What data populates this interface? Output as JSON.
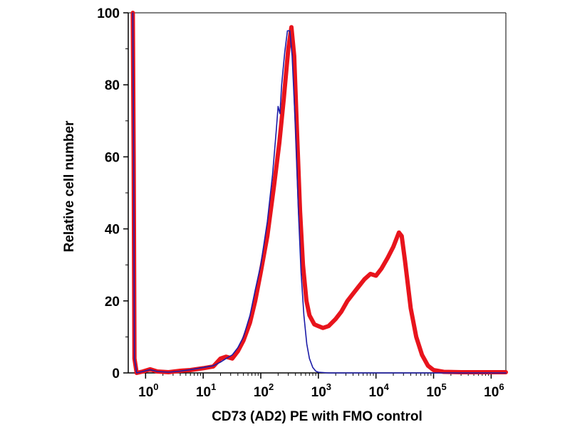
{
  "chart_data": {
    "type": "line",
    "title": "",
    "xlabel": "CD73 (AD2) PE with FMO control",
    "ylabel": "Relative cell number",
    "x_scale": "log",
    "xlim": [
      0.5,
      1800000
    ],
    "ylim": [
      0,
      100
    ],
    "x_ticks": [
      {
        "base": "10",
        "exp": "0",
        "value": 1
      },
      {
        "base": "10",
        "exp": "1",
        "value": 10
      },
      {
        "base": "10",
        "exp": "2",
        "value": 100
      },
      {
        "base": "10",
        "exp": "3",
        "value": 1000
      },
      {
        "base": "10",
        "exp": "4",
        "value": 10000
      },
      {
        "base": "10",
        "exp": "5",
        "value": 100000
      },
      {
        "base": "10",
        "exp": "6",
        "value": 1000000
      }
    ],
    "y_ticks": [
      {
        "label": "0",
        "value": 0
      },
      {
        "label": "20",
        "value": 20
      },
      {
        "label": "40",
        "value": 40
      },
      {
        "label": "60",
        "value": 60
      },
      {
        "label": "80",
        "value": 80
      },
      {
        "label": "100",
        "value": 100
      }
    ],
    "grid": false,
    "series": [
      {
        "color": "#e8141c",
        "line_width": "thick",
        "points": [
          [
            0.6,
            100
          ],
          [
            0.62,
            60
          ],
          [
            0.64,
            4
          ],
          [
            0.7,
            0
          ],
          [
            0.9,
            0.4
          ],
          [
            1.2,
            1
          ],
          [
            1.6,
            0.4
          ],
          [
            2.5,
            0.2
          ],
          [
            4,
            0.6
          ],
          [
            6,
            0.8
          ],
          [
            10,
            1.3
          ],
          [
            15,
            1.8
          ],
          [
            20,
            4
          ],
          [
            25,
            4.5
          ],
          [
            32,
            4
          ],
          [
            40,
            6
          ],
          [
            50,
            9
          ],
          [
            65,
            14
          ],
          [
            80,
            20
          ],
          [
            100,
            28
          ],
          [
            130,
            38
          ],
          [
            170,
            52
          ],
          [
            210,
            64
          ],
          [
            250,
            76
          ],
          [
            300,
            90
          ],
          [
            340,
            96
          ],
          [
            380,
            88
          ],
          [
            430,
            65
          ],
          [
            480,
            45
          ],
          [
            540,
            30
          ],
          [
            620,
            20
          ],
          [
            700,
            16
          ],
          [
            850,
            13.5
          ],
          [
            1000,
            13
          ],
          [
            1200,
            12.5
          ],
          [
            1500,
            13
          ],
          [
            2000,
            15
          ],
          [
            2500,
            17
          ],
          [
            3200,
            20
          ],
          [
            4000,
            22
          ],
          [
            5000,
            24
          ],
          [
            6300,
            26
          ],
          [
            8000,
            27.5
          ],
          [
            10000,
            27
          ],
          [
            12500,
            29
          ],
          [
            16000,
            32
          ],
          [
            20000,
            35
          ],
          [
            25000,
            39
          ],
          [
            28000,
            38
          ],
          [
            32000,
            31
          ],
          [
            40000,
            18
          ],
          [
            50000,
            10
          ],
          [
            63000,
            5
          ],
          [
            80000,
            2
          ],
          [
            100000,
            0.8
          ],
          [
            150000,
            0.3
          ],
          [
            300000,
            0.2
          ],
          [
            1800000,
            0.2
          ]
        ]
      },
      {
        "color": "#1c1ca8",
        "line_width": "thin",
        "points": [
          [
            0.6,
            100
          ],
          [
            0.62,
            60
          ],
          [
            0.64,
            4
          ],
          [
            0.7,
            0
          ],
          [
            0.9,
            0.4
          ],
          [
            1.2,
            0.9
          ],
          [
            1.6,
            0.4
          ],
          [
            2.5,
            0.2
          ],
          [
            4,
            0.5
          ],
          [
            6,
            0.9
          ],
          [
            10,
            1.5
          ],
          [
            15,
            2
          ],
          [
            20,
            3
          ],
          [
            25,
            4
          ],
          [
            32,
            5
          ],
          [
            40,
            7
          ],
          [
            50,
            10
          ],
          [
            65,
            16
          ],
          [
            80,
            23
          ],
          [
            100,
            30
          ],
          [
            130,
            42
          ],
          [
            160,
            55
          ],
          [
            185,
            67
          ],
          [
            200,
            74
          ],
          [
            215,
            72
          ],
          [
            230,
            80
          ],
          [
            260,
            89
          ],
          [
            290,
            95
          ],
          [
            320,
            95
          ],
          [
            350,
            88
          ],
          [
            400,
            68
          ],
          [
            450,
            45
          ],
          [
            500,
            28
          ],
          [
            560,
            16
          ],
          [
            630,
            8
          ],
          [
            700,
            4
          ],
          [
            800,
            1.5
          ],
          [
            900,
            0.5
          ],
          [
            1000,
            0.2
          ],
          [
            1500,
            0
          ],
          [
            1800000,
            0
          ]
        ]
      }
    ]
  }
}
